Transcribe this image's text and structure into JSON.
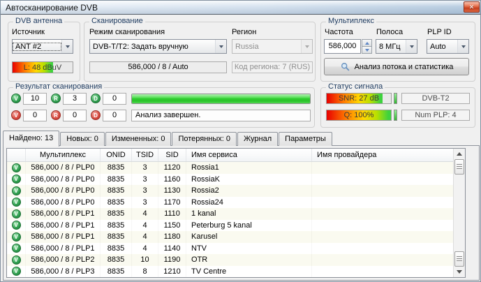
{
  "window": {
    "title": "Автосканирование DVB",
    "close_glyph": "✕"
  },
  "antenna": {
    "title": "DVB антенна",
    "source_label": "Источник",
    "source_value": "ANT #2",
    "level_text": "L: 48 dBuV",
    "level_percent": 68
  },
  "scan": {
    "title": "Сканирование",
    "mode_label": "Режим сканирования",
    "mode_value": "DVB-T/T2: Задать вручную",
    "region_label": "Регион",
    "region_value": "Russia",
    "tune_value": "586,000 / 8 / Auto",
    "region_code_value": "Код региона: 7 (RUS)"
  },
  "mux": {
    "title": "Мультиплекс",
    "freq_label": "Частота",
    "freq_value": "586,000",
    "band_label": "Полоса",
    "band_value": "8 МГц",
    "plp_label": "PLP ID",
    "plp_value": "Auto",
    "analyze_label": "Анализ потока и статистика"
  },
  "result": {
    "title": "Результат сканирования",
    "letters": [
      "V",
      "R",
      "D"
    ],
    "ok_values": [
      "10",
      "3",
      "0"
    ],
    "fail_values": [
      "0",
      "0",
      "0"
    ],
    "progress_percent": 100,
    "status_text": "Анализ завершен."
  },
  "signal": {
    "title": "Статус сигнала",
    "snr_text": "SNR: 27 dB",
    "snr_percent": 87,
    "quality_text": "Q: 100%",
    "quality_percent": 100,
    "standard_value": "DVB-T2",
    "num_plp_value": "Num PLP: 4"
  },
  "tabs": [
    {
      "label": "Найдено: 13",
      "active": true
    },
    {
      "label": "Новых: 0",
      "active": false
    },
    {
      "label": "Измененных: 0",
      "active": false
    },
    {
      "label": "Потерянных: 0",
      "active": false
    },
    {
      "label": "Журнал",
      "active": false
    },
    {
      "label": "Параметры",
      "active": false
    }
  ],
  "table": {
    "headers": {
      "icon": "",
      "mux": "Мультиплекс",
      "onid": "ONID",
      "tsid": "TSID",
      "sid": "SID",
      "service": "Имя сервиса",
      "provider": "Имя провайдера"
    },
    "rows": [
      {
        "icon": "V",
        "mux": "586,000 / 8 / PLP0",
        "onid": "8835",
        "tsid": "3",
        "sid": "1120",
        "service": "Rossia1",
        "provider": ""
      },
      {
        "icon": "V",
        "mux": "586,000 / 8 / PLP0",
        "onid": "8835",
        "tsid": "3",
        "sid": "1160",
        "service": "RossiaK",
        "provider": ""
      },
      {
        "icon": "V",
        "mux": "586,000 / 8 / PLP0",
        "onid": "8835",
        "tsid": "3",
        "sid": "1130",
        "service": "Rossia2",
        "provider": ""
      },
      {
        "icon": "V",
        "mux": "586,000 / 8 / PLP0",
        "onid": "8835",
        "tsid": "3",
        "sid": "1170",
        "service": "Rossia24",
        "provider": ""
      },
      {
        "icon": "V",
        "mux": "586,000 / 8 / PLP1",
        "onid": "8835",
        "tsid": "4",
        "sid": "1110",
        "service": "1 kanal",
        "provider": ""
      },
      {
        "icon": "V",
        "mux": "586,000 / 8 / PLP1",
        "onid": "8835",
        "tsid": "4",
        "sid": "1150",
        "service": "Peterburg 5 kanal",
        "provider": ""
      },
      {
        "icon": "V",
        "mux": "586,000 / 8 / PLP1",
        "onid": "8835",
        "tsid": "4",
        "sid": "1180",
        "service": "Karusel",
        "provider": ""
      },
      {
        "icon": "V",
        "mux": "586,000 / 8 / PLP1",
        "onid": "8835",
        "tsid": "4",
        "sid": "1140",
        "service": "NTV",
        "provider": ""
      },
      {
        "icon": "V",
        "mux": "586,000 / 8 / PLP2",
        "onid": "8835",
        "tsid": "10",
        "sid": "1190",
        "service": "OTR",
        "provider": ""
      },
      {
        "icon": "V",
        "mux": "586,000 / 8 / PLP3",
        "onid": "8835",
        "tsid": "8",
        "sid": "1210",
        "service": "TV Centre",
        "provider": ""
      }
    ]
  },
  "colors": {
    "ok_green": "#2f9e4f",
    "fail_red": "#d84b40",
    "progress_green": "#2ecc2e",
    "close_red": "#d6532f"
  }
}
